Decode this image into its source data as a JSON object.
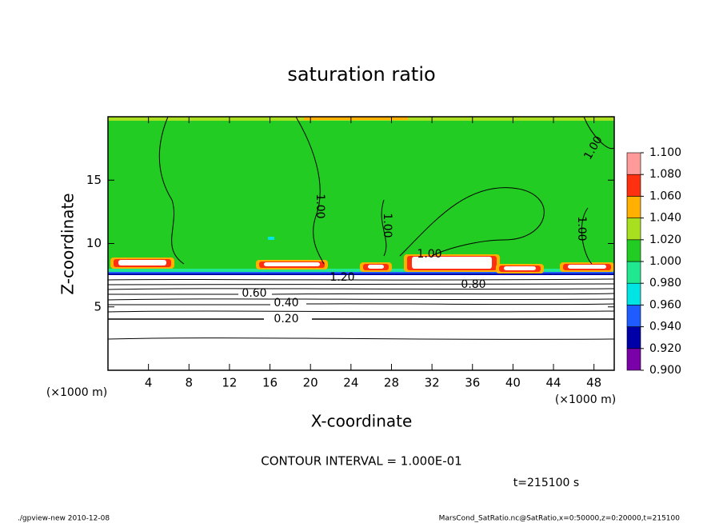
{
  "chart_data": {
    "type": "contour",
    "title": "saturation ratio",
    "x_label": "X-coordinate",
    "y_label": "Z-coordinate",
    "x_unit": "(×1000 m)",
    "y_unit": "(×1000 m)",
    "xlim": [
      0,
      50
    ],
    "ylim": [
      0,
      20
    ],
    "xticks": [
      4,
      8,
      12,
      16,
      20,
      24,
      28,
      32,
      36,
      40,
      44,
      48
    ],
    "yticks": [
      5,
      10,
      15
    ],
    "colorbar_levels": [
      {
        "value": 0.9,
        "label": "0.900"
      },
      {
        "value": 0.92,
        "label": "0.920"
      },
      {
        "value": 0.94,
        "label": "0.940"
      },
      {
        "value": 0.96,
        "label": "0.960"
      },
      {
        "value": 0.98,
        "label": "0.980"
      },
      {
        "value": 1.0,
        "label": "1.000"
      },
      {
        "value": 1.02,
        "label": "1.020"
      },
      {
        "value": 1.04,
        "label": "1.040"
      },
      {
        "value": 1.06,
        "label": "1.060"
      },
      {
        "value": 1.08,
        "label": "1.080"
      },
      {
        "value": 1.1,
        "label": "1.100"
      }
    ],
    "colors": [
      "#7a00a8",
      "#0000a8",
      "#1e5cff",
      "#00e4e4",
      "#20e890",
      "#22cc22",
      "#a8e020",
      "#ffb000",
      "#ff3010",
      "#ff9a9a"
    ],
    "contour_labels": [
      {
        "value": 1.0,
        "label": "1.00"
      },
      {
        "value": 1.0,
        "label": "1.00"
      },
      {
        "value": 1.0,
        "label": "1.00"
      },
      {
        "value": 1.0,
        "label": "1.00"
      },
      {
        "value": 1.0,
        "label": "1.00"
      },
      {
        "value": 1.2,
        "label": "1.20"
      },
      {
        "value": 0.8,
        "label": "0.80"
      },
      {
        "value": 0.6,
        "label": "0.60"
      },
      {
        "value": 0.4,
        "label": "0.40"
      },
      {
        "value": 0.2,
        "label": "0.20"
      }
    ],
    "contour_interval": "CONTOUR INTERVAL = 1.000E-01",
    "time": "t=215100 s",
    "footer_left": "./gpview-new  2010-12-08",
    "footer_right": "MarsCond_SatRatio.nc@SatRatio,x=0:50000,z=0:20000,t=215100"
  }
}
